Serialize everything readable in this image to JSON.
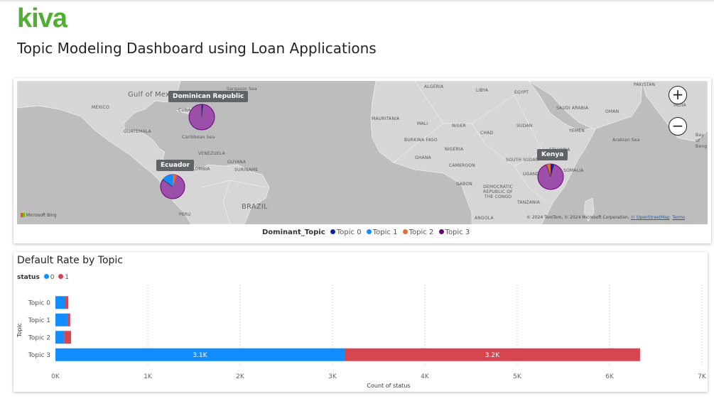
{
  "header": {
    "logo": "kiva",
    "title": "Topic Modeling Dashboard using Loan Applications"
  },
  "map": {
    "labels": {
      "gulf": "Gulf of Mexico",
      "mexico": "MEXICO",
      "cuba": "CUBA",
      "guatemala": "GUATEMALA",
      "caribbean": "Caribbean Sea",
      "sargasso": "Sargasso Sea",
      "venezuela": "VENEZUELA",
      "guyana": "GUYANA",
      "suriname": "SURINAME",
      "colombia": "COLOMBIA",
      "peru": "PERU",
      "brazil": "BRAZIL",
      "algeria": "ALGERIA",
      "libya": "LIBYA",
      "egypt": "EGYPT",
      "mauritania": "MAURITANIA",
      "mali": "MALI",
      "niger": "NIGER",
      "chad": "CHAD",
      "sudan": "SUDAN",
      "burkina": "BURKINA FASO",
      "nigeria": "NIGERIA",
      "ghana": "GHANA",
      "cameroon": "CAMEROON",
      "southsudan": "SOUTH SUDAN",
      "ethiopia": "ETHIOPIA",
      "gabon": "GABON",
      "drc": "DEMOCRATIC REPUBLIC OF THE CONGO",
      "uganda": "UGANDA",
      "tanzania": "TANZANIA",
      "angola": "ANGOLA",
      "somalia": "SOMALIA",
      "saudi": "SAUDI ARABIA",
      "oman": "OMAN",
      "yemen": "YEMEN",
      "arabiansea": "Arabian Sea",
      "pakistan": "PAKISTAN",
      "india": "INDIA",
      "bay": "Bay of Beng"
    },
    "callouts": {
      "dominican": "Dominican Republic",
      "ecuador": "Ecuador",
      "kenya": "Kenya"
    },
    "bing": "Microsoft Bing",
    "copyright": "© 2024 TomTom, © 2024 Microsoft Corporation,",
    "osm": "© OpenStreetMap",
    "terms": "Terms",
    "zoom_in": "+",
    "zoom_out": "−",
    "legend": {
      "title": "Dominant_Topic",
      "items": [
        {
          "label": "Topic 0",
          "color": "#12239e"
        },
        {
          "label": "Topic 1",
          "color": "#118dff"
        },
        {
          "label": "Topic 2",
          "color": "#e66c37"
        },
        {
          "label": "Topic 3",
          "color": "#6b007b"
        }
      ]
    }
  },
  "chart_data": {
    "type": "bar",
    "orientation": "horizontal",
    "stacked": true,
    "title": "Default Rate by Topic",
    "legend_title": "status",
    "categories": [
      "Topic 0",
      "Topic 1",
      "Topic 2",
      "Topic 3"
    ],
    "series": [
      {
        "name": "0",
        "color": "#118dff",
        "values": [
          100,
          130,
          95,
          3130
        ]
      },
      {
        "name": "1",
        "color": "#d64550",
        "values": [
          40,
          30,
          75,
          3200
        ]
      }
    ],
    "data_labels": [
      null,
      null,
      null,
      null,
      null,
      null,
      null,
      null
    ],
    "bar_labels": {
      "Topic 3": [
        "3.1K",
        "3.2K"
      ]
    },
    "xlabel": "Count of status",
    "ylabel": "Topic",
    "xlim": [
      0,
      7000
    ],
    "xticks": [
      "0K",
      "1K",
      "2K",
      "3K",
      "4K",
      "5K",
      "6K",
      "7K"
    ],
    "grid": true,
    "legend_position": "top-left"
  }
}
